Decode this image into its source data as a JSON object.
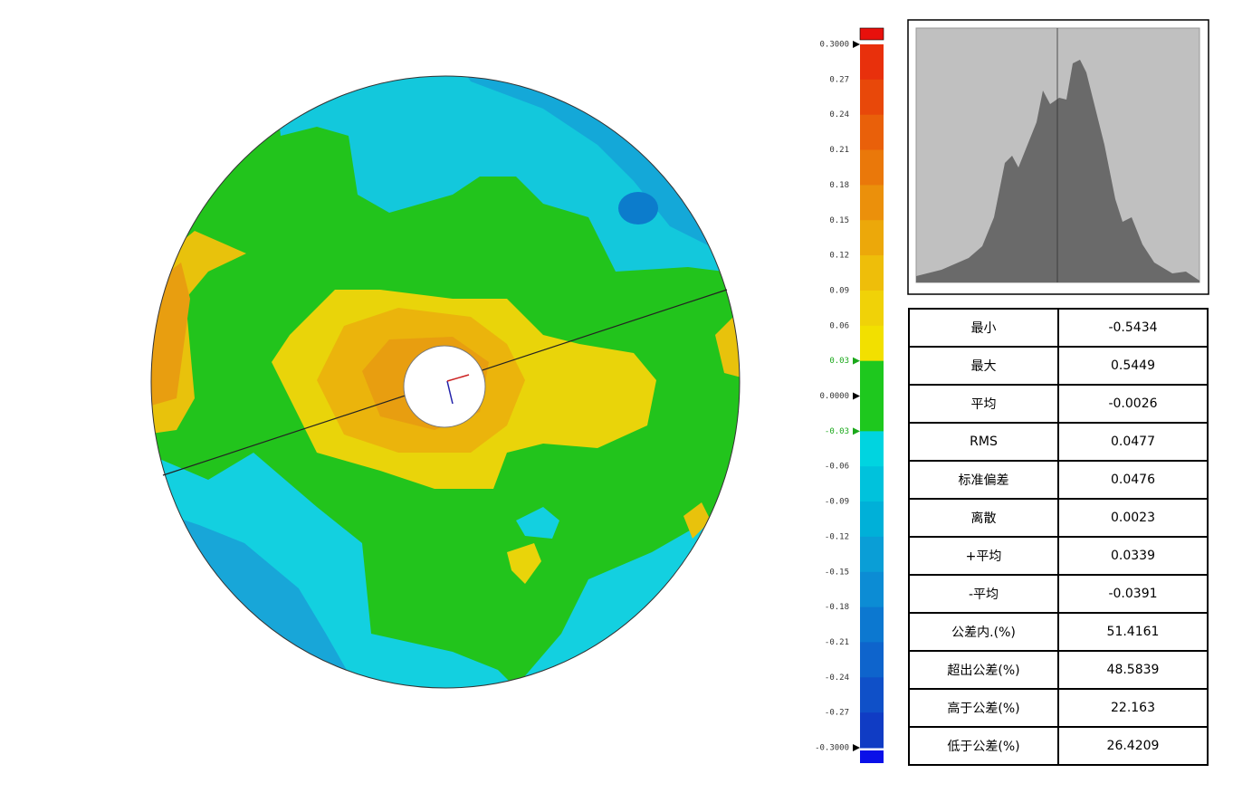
{
  "color_scale": {
    "labels": [
      "0.3000",
      "0.27",
      "0.24",
      "0.21",
      "0.18",
      "0.15",
      "0.12",
      "0.09",
      "0.06",
      "0.03",
      "0.0000",
      "-0.03",
      "-0.06",
      "-0.09",
      "-0.12",
      "-0.15",
      "-0.18",
      "-0.21",
      "-0.24",
      "-0.27",
      "-0.3000"
    ]
  },
  "statistics": {
    "rows": [
      [
        "最小",
        "-0.5434"
      ],
      [
        "最大",
        "0.5449"
      ],
      [
        "平均",
        "-0.0026"
      ],
      [
        "RMS",
        "0.0477"
      ],
      [
        "标准偏差",
        "0.0476"
      ],
      [
        "离散",
        "0.0023"
      ],
      [
        "+平均",
        "0.0339"
      ],
      [
        "-平均",
        "-0.0391"
      ],
      [
        "公差内.(%)",
        "51.4161"
      ],
      [
        "超出公差(%)",
        "48.5839"
      ],
      [
        "高于公差(%)",
        "22.163"
      ],
      [
        "低于公差(%)",
        "26.4209"
      ]
    ]
  }
}
